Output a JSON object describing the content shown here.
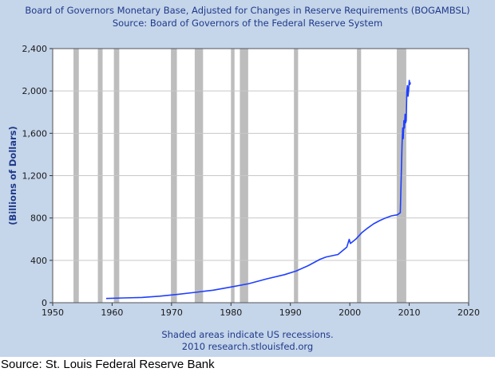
{
  "chart_data": {
    "type": "line",
    "title": "Board of Governors Monetary Base, Adjusted for Changes in Reserve Requirements (BOGAMBSL)",
    "subtitle": "Source: Board of Governors of the Federal Reserve System",
    "xlabel": "",
    "ylabel": "(Billions of Dollars)",
    "xlim": [
      1950,
      2020
    ],
    "ylim": [
      0,
      2400
    ],
    "x_ticks": [
      1950,
      1960,
      1970,
      1980,
      1990,
      2000,
      2010,
      2020
    ],
    "y_ticks": [
      0,
      400,
      800,
      1200,
      1600,
      2000,
      2400
    ],
    "y_tick_labels": [
      "0",
      "400",
      "800",
      "1,200",
      "1,600",
      "2,000",
      "2,400"
    ],
    "grid": "horizontal",
    "recessions": [
      [
        1953.5,
        1954.4
      ],
      [
        1957.6,
        1958.4
      ],
      [
        1960.3,
        1961.2
      ],
      [
        1969.9,
        1970.9
      ],
      [
        1973.9,
        1975.3
      ],
      [
        1980.0,
        1980.6
      ],
      [
        1981.5,
        1982.9
      ],
      [
        1990.6,
        1991.3
      ],
      [
        2001.2,
        2001.9
      ],
      [
        2007.9,
        2009.5
      ]
    ],
    "series": [
      {
        "name": "BOGAMBSL",
        "color": "#1f3fff",
        "x": [
          1959.0,
          1962,
          1965,
          1968,
          1971,
          1974,
          1977,
          1980,
          1983,
          1986,
          1989,
          1991,
          1993,
          1995,
          1996,
          1998,
          1999.5,
          1999.9,
          2000.1,
          2000.5,
          2001,
          2002,
          2003,
          2004,
          2005,
          2006,
          2007,
          2008.0,
          2008.5,
          2008.7,
          2008.8,
          2008.9,
          2009.0,
          2009.1,
          2009.2,
          2009.3,
          2009.4,
          2009.5,
          2009.6,
          2009.7,
          2009.8,
          2009.9,
          2010.0,
          2010.1,
          2010.2
        ],
        "values": [
          40,
          45,
          50,
          62,
          78,
          98,
          118,
          148,
          180,
          225,
          265,
          300,
          350,
          410,
          432,
          455,
          525,
          598,
          560,
          578,
          600,
          660,
          705,
          745,
          775,
          800,
          820,
          830,
          850,
          1300,
          1500,
          1650,
          1550,
          1720,
          1650,
          1780,
          1700,
          1720,
          2000,
          2050,
          1950,
          2000,
          2100,
          2060,
          2080
        ]
      }
    ]
  },
  "footnote_line1": "Shaded areas indicate US recessions.",
  "footnote_line2": "2010 research.stlouisfed.org",
  "source_caption": "Source: St. Louis Federal Reserve Bank"
}
